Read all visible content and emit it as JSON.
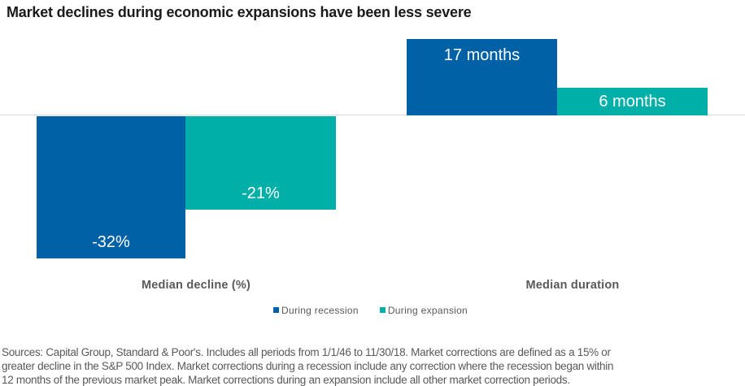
{
  "title": "Market declines during economic expansions have been less severe",
  "colors": {
    "recession_blue": "#0061a6",
    "expansion_teal": "#00b0a8",
    "baseline_gray": "#d9d9d9",
    "label_gray": "#595959",
    "title_black": "#1a1a1a"
  },
  "chart_data": {
    "type": "bar",
    "title": "Market declines during economic expansions have been less severe",
    "categories": [
      "Median decline (%)",
      "Median duration"
    ],
    "series": [
      {
        "name": "During recession",
        "color": "#0061a6",
        "values": [
          -32,
          17
        ]
      },
      {
        "name": "During expansion",
        "color": "#00b0a8",
        "values": [
          -21,
          6
        ]
      }
    ],
    "data_labels": {
      "decline_recession": "-32%",
      "decline_expansion": "-21%",
      "duration_recession": "17 months",
      "duration_expansion": "6 months"
    },
    "axes": {
      "baseline_shared": true,
      "grid": "single horizontal baseline only",
      "decline_unit": "percent",
      "duration_unit": "months"
    },
    "legend_position": "bottom-center"
  },
  "axis_labels": {
    "decline": "Median decline (%)",
    "duration": "Median duration"
  },
  "legend": {
    "items": [
      {
        "label": "During recession",
        "color": "#0061a6"
      },
      {
        "label": "During expansion",
        "color": "#00b0a8"
      }
    ]
  },
  "footnote": {
    "lines": [
      "Sources: Capital Group, Standard & Poor's. Includes all periods from 1/1/46 to 11/30/18. Market corrections are defined as a 15% or",
      "greater decline in the S&P 500 Index. Market corrections during a recession include any correction where the recession began within",
      "12 months of the previous market peak. Market corrections during an expansion include all other market correction periods."
    ]
  }
}
